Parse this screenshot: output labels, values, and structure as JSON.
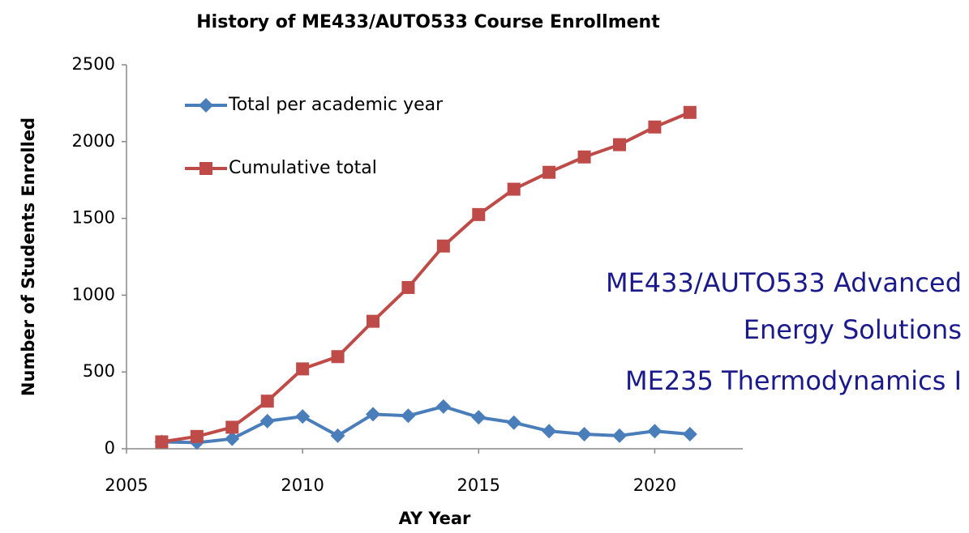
{
  "chart_data": {
    "type": "line",
    "title": "History of ME433/AUTO533 Course Enrollment",
    "x_label": "AY Year",
    "y_label": "Number of Students Enrolled",
    "x": [
      2006,
      2007,
      2008,
      2009,
      2010,
      2011,
      2012,
      2013,
      2014,
      2015,
      2016,
      2017,
      2018,
      2019,
      2020,
      2021
    ],
    "series": [
      {
        "name": "Total per academic year",
        "color": "#4a7ebb",
        "marker": "diamond",
        "values": [
          45,
          40,
          65,
          180,
          210,
          85,
          225,
          215,
          275,
          205,
          170,
          115,
          95,
          85,
          115,
          95
        ]
      },
      {
        "name": "Cumulative total",
        "color": "#be4b48",
        "marker": "square",
        "values": [
          45,
          80,
          140,
          310,
          520,
          600,
          830,
          1050,
          1320,
          1525,
          1690,
          1800,
          1900,
          1980,
          2095,
          2190
        ]
      }
    ],
    "xlim": [
      2005,
      2022.5
    ],
    "xticks": [
      2005,
      2010,
      2015,
      2020
    ],
    "ylim": [
      0,
      2500
    ],
    "yticks": [
      0,
      500,
      1000,
      1500,
      2000,
      2500
    ],
    "grid": false,
    "legend_position": "upper-left",
    "annotations": [
      "ME433/AUTO533 Advanced",
      "Energy Solutions",
      "ME235 Thermodynamics I"
    ]
  }
}
